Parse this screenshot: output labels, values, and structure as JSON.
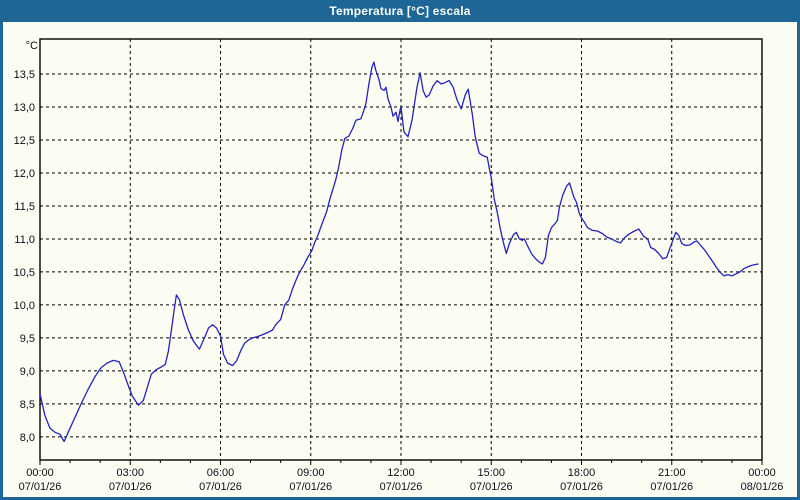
{
  "window": {
    "title": "Temperatura [°C] escala"
  },
  "colors": {
    "frame": "#1d6696",
    "window_bg": "#fcfef3",
    "title_text": "#ffffff",
    "grid": "#000000",
    "axis": "#000000",
    "label": "#0d0d1c",
    "series": "#2323bd"
  },
  "chart_data": {
    "type": "line",
    "title": "Temperatura [°C] escala",
    "ylabel": "°C",
    "unit_label": "°C",
    "grid": true,
    "legend": "none",
    "ylim": [
      7.65,
      14.03
    ],
    "xlim_minutes": [
      0,
      1440
    ],
    "x_minor_tick_minutes": 60,
    "y_ticks": [
      {
        "v": 8.0,
        "label": "8,0"
      },
      {
        "v": 8.5,
        "label": "8,5"
      },
      {
        "v": 9.0,
        "label": "9,0"
      },
      {
        "v": 9.5,
        "label": "9,5"
      },
      {
        "v": 10.0,
        "label": "10,0"
      },
      {
        "v": 10.5,
        "label": "10,5"
      },
      {
        "v": 11.0,
        "label": "11,0"
      },
      {
        "v": 11.5,
        "label": "11,5"
      },
      {
        "v": 12.0,
        "label": "12,0"
      },
      {
        "v": 12.5,
        "label": "12,5"
      },
      {
        "v": 13.0,
        "label": "13,0"
      },
      {
        "v": 13.5,
        "label": "13,5"
      }
    ],
    "x_ticks": [
      {
        "hour": 0,
        "time": "00:00",
        "date": "07/01/26"
      },
      {
        "hour": 3,
        "time": "03:00",
        "date": "07/01/26"
      },
      {
        "hour": 6,
        "time": "06:00",
        "date": "07/01/26"
      },
      {
        "hour": 9,
        "time": "09:00",
        "date": "07/01/26"
      },
      {
        "hour": 12,
        "time": "12:00",
        "date": "07/01/26"
      },
      {
        "hour": 15,
        "time": "15:00",
        "date": "07/01/26"
      },
      {
        "hour": 18,
        "time": "18:00",
        "date": "07/01/26"
      },
      {
        "hour": 21,
        "time": "21:00",
        "date": "07/01/26"
      },
      {
        "hour": 24,
        "time": "00:00",
        "date": "08/01/26"
      }
    ],
    "series": [
      {
        "name": "Temperatura",
        "color": "#2323bd",
        "points": [
          [
            0,
            8.65
          ],
          [
            10,
            8.32
          ],
          [
            20,
            8.13
          ],
          [
            30,
            8.07
          ],
          [
            40,
            8.04
          ],
          [
            48,
            7.93
          ],
          [
            58,
            8.1
          ],
          [
            70,
            8.3
          ],
          [
            82,
            8.5
          ],
          [
            96,
            8.72
          ],
          [
            110,
            8.92
          ],
          [
            122,
            9.05
          ],
          [
            134,
            9.12
          ],
          [
            146,
            9.16
          ],
          [
            158,
            9.14
          ],
          [
            168,
            8.95
          ],
          [
            176,
            8.78
          ],
          [
            184,
            8.62
          ],
          [
            196,
            8.48
          ],
          [
            206,
            8.55
          ],
          [
            214,
            8.75
          ],
          [
            222,
            8.95
          ],
          [
            232,
            9.02
          ],
          [
            242,
            9.06
          ],
          [
            250,
            9.1
          ],
          [
            256,
            9.3
          ],
          [
            262,
            9.62
          ],
          [
            268,
            9.95
          ],
          [
            272,
            10.15
          ],
          [
            278,
            10.08
          ],
          [
            286,
            9.85
          ],
          [
            296,
            9.62
          ],
          [
            306,
            9.45
          ],
          [
            318,
            9.33
          ],
          [
            328,
            9.5
          ],
          [
            336,
            9.65
          ],
          [
            344,
            9.7
          ],
          [
            352,
            9.65
          ],
          [
            360,
            9.53
          ],
          [
            366,
            9.25
          ],
          [
            374,
            9.12
          ],
          [
            384,
            9.08
          ],
          [
            392,
            9.15
          ],
          [
            400,
            9.3
          ],
          [
            408,
            9.42
          ],
          [
            416,
            9.47
          ],
          [
            424,
            9.5
          ],
          [
            434,
            9.52
          ],
          [
            444,
            9.55
          ],
          [
            454,
            9.58
          ],
          [
            464,
            9.62
          ],
          [
            470,
            9.7
          ],
          [
            480,
            9.78
          ],
          [
            488,
            10.0
          ],
          [
            496,
            10.07
          ],
          [
            504,
            10.25
          ],
          [
            512,
            10.4
          ],
          [
            518,
            10.5
          ],
          [
            526,
            10.6
          ],
          [
            534,
            10.72
          ],
          [
            542,
            10.82
          ],
          [
            548,
            10.95
          ],
          [
            554,
            11.05
          ],
          [
            560,
            11.18
          ],
          [
            566,
            11.3
          ],
          [
            572,
            11.42
          ],
          [
            578,
            11.6
          ],
          [
            584,
            11.75
          ],
          [
            590,
            11.9
          ],
          [
            596,
            12.1
          ],
          [
            602,
            12.35
          ],
          [
            608,
            12.52
          ],
          [
            616,
            12.56
          ],
          [
            624,
            12.68
          ],
          [
            630,
            12.8
          ],
          [
            640,
            12.82
          ],
          [
            646,
            12.95
          ],
          [
            650,
            13.05
          ],
          [
            656,
            13.35
          ],
          [
            662,
            13.6
          ],
          [
            666,
            13.68
          ],
          [
            670,
            13.55
          ],
          [
            676,
            13.42
          ],
          [
            680,
            13.28
          ],
          [
            686,
            13.25
          ],
          [
            690,
            13.3
          ],
          [
            694,
            13.12
          ],
          [
            700,
            13.0
          ],
          [
            704,
            12.86
          ],
          [
            710,
            12.92
          ],
          [
            714,
            12.78
          ],
          [
            718,
            12.95
          ],
          [
            720,
            13.0
          ],
          [
            726,
            12.62
          ],
          [
            734,
            12.55
          ],
          [
            742,
            12.8
          ],
          [
            746,
            13.0
          ],
          [
            752,
            13.3
          ],
          [
            758,
            13.52
          ],
          [
            764,
            13.25
          ],
          [
            770,
            13.15
          ],
          [
            776,
            13.18
          ],
          [
            784,
            13.32
          ],
          [
            792,
            13.4
          ],
          [
            800,
            13.35
          ],
          [
            808,
            13.37
          ],
          [
            816,
            13.4
          ],
          [
            824,
            13.3
          ],
          [
            832,
            13.1
          ],
          [
            840,
            12.97
          ],
          [
            848,
            13.18
          ],
          [
            854,
            13.27
          ],
          [
            862,
            12.9
          ],
          [
            868,
            12.55
          ],
          [
            876,
            12.3
          ],
          [
            884,
            12.26
          ],
          [
            892,
            12.24
          ],
          [
            898,
            12.0
          ],
          [
            900,
            11.93
          ],
          [
            906,
            11.6
          ],
          [
            912,
            11.4
          ],
          [
            918,
            11.15
          ],
          [
            924,
            10.95
          ],
          [
            930,
            10.78
          ],
          [
            936,
            10.93
          ],
          [
            944,
            11.06
          ],
          [
            950,
            11.1
          ],
          [
            956,
            11.0
          ],
          [
            962,
            10.98
          ],
          [
            966,
            11.0
          ],
          [
            974,
            10.87
          ],
          [
            980,
            10.78
          ],
          [
            986,
            10.72
          ],
          [
            994,
            10.66
          ],
          [
            1002,
            10.62
          ],
          [
            1008,
            10.72
          ],
          [
            1014,
            11.05
          ],
          [
            1020,
            11.17
          ],
          [
            1026,
            11.22
          ],
          [
            1032,
            11.28
          ],
          [
            1036,
            11.48
          ],
          [
            1042,
            11.65
          ],
          [
            1050,
            11.8
          ],
          [
            1056,
            11.85
          ],
          [
            1064,
            11.65
          ],
          [
            1070,
            11.55
          ],
          [
            1076,
            11.38
          ],
          [
            1080,
            11.32
          ],
          [
            1086,
            11.25
          ],
          [
            1092,
            11.17
          ],
          [
            1102,
            11.13
          ],
          [
            1112,
            11.12
          ],
          [
            1122,
            11.08
          ],
          [
            1130,
            11.03
          ],
          [
            1140,
            11.0
          ],
          [
            1150,
            10.96
          ],
          [
            1158,
            10.94
          ],
          [
            1166,
            11.02
          ],
          [
            1176,
            11.08
          ],
          [
            1186,
            11.12
          ],
          [
            1194,
            11.15
          ],
          [
            1204,
            11.04
          ],
          [
            1212,
            11.0
          ],
          [
            1218,
            10.87
          ],
          [
            1226,
            10.84
          ],
          [
            1234,
            10.78
          ],
          [
            1242,
            10.7
          ],
          [
            1250,
            10.72
          ],
          [
            1256,
            10.85
          ],
          [
            1262,
            10.98
          ],
          [
            1268,
            11.1
          ],
          [
            1274,
            11.05
          ],
          [
            1280,
            10.93
          ],
          [
            1288,
            10.9
          ],
          [
            1296,
            10.91
          ],
          [
            1304,
            10.95
          ],
          [
            1310,
            10.97
          ],
          [
            1318,
            10.9
          ],
          [
            1326,
            10.83
          ],
          [
            1334,
            10.74
          ],
          [
            1342,
            10.65
          ],
          [
            1350,
            10.56
          ],
          [
            1356,
            10.5
          ],
          [
            1364,
            10.44
          ],
          [
            1372,
            10.46
          ],
          [
            1380,
            10.44
          ],
          [
            1388,
            10.47
          ],
          [
            1396,
            10.5
          ],
          [
            1404,
            10.55
          ],
          [
            1412,
            10.58
          ],
          [
            1420,
            10.6
          ],
          [
            1432,
            10.62
          ]
        ]
      }
    ]
  }
}
